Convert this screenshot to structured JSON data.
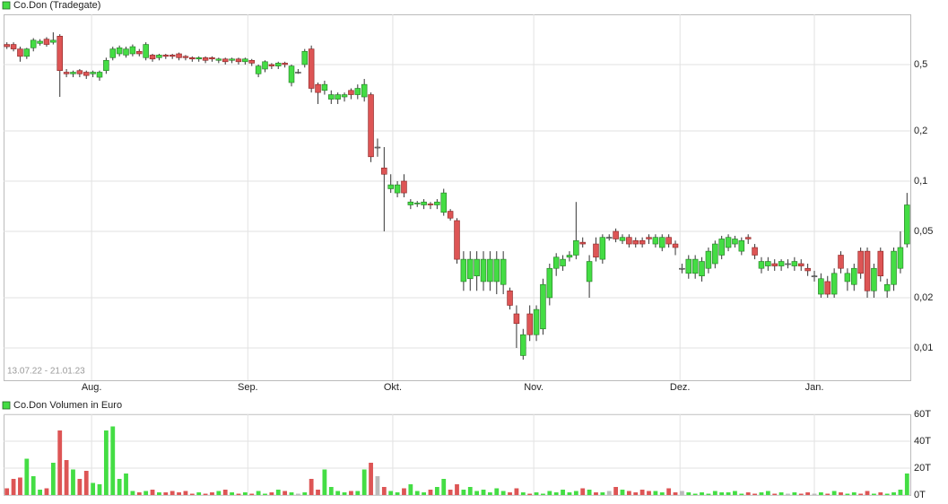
{
  "chart_data": [
    {
      "type": "candlestick",
      "title": "Co.Don (Tradegate)",
      "annotation": "13.07.22 - 21.01.23",
      "log": true,
      "grid": true,
      "up_color": "#44dd44",
      "down_color": "#dd5555",
      "flat_color": "#bbbbbb",
      "ylim": [
        0.0064,
        1.0
      ],
      "yticks": [
        {
          "value": 0.01,
          "label": "0,01"
        },
        {
          "value": 0.02,
          "label": "0,02"
        },
        {
          "value": 0.05,
          "label": "0,05"
        },
        {
          "value": 0.1,
          "label": "0,1"
        },
        {
          "value": 0.2,
          "label": "0,2"
        },
        {
          "value": 0.5,
          "label": "0,5"
        }
      ],
      "xlim": [
        -0.5,
        136.5
      ],
      "xticks": [
        {
          "value": 12.8,
          "label": "Aug."
        },
        {
          "value": 36.4,
          "label": "Sep."
        },
        {
          "value": 58.3,
          "label": "Okt."
        },
        {
          "value": 79.6,
          "label": "Nov."
        },
        {
          "value": 101.7,
          "label": "Dez."
        },
        {
          "value": 122.0,
          "label": "Jan."
        }
      ],
      "open": [
        0.66,
        0.66,
        0.62,
        0.56,
        0.63,
        0.67,
        0.71,
        0.68,
        0.74,
        0.45,
        0.44,
        0.46,
        0.45,
        0.44,
        0.42,
        0.46,
        0.55,
        0.58,
        0.57,
        0.58,
        0.6,
        0.55,
        0.57,
        0.55,
        0.57,
        0.57,
        0.58,
        0.56,
        0.55,
        0.54,
        0.55,
        0.55,
        0.53,
        0.54,
        0.53,
        0.54,
        0.52,
        0.53,
        0.44,
        0.47,
        0.5,
        0.49,
        0.51,
        0.39,
        0.45,
        0.5,
        0.62,
        0.38,
        0.35,
        0.31,
        0.31,
        0.32,
        0.35,
        0.33,
        0.32,
        0.33,
        0.16,
        0.12,
        0.09,
        0.085,
        0.1,
        0.072,
        0.073,
        0.072,
        0.073,
        0.072,
        0.065,
        0.066,
        0.058,
        0.025,
        0.026,
        0.027,
        0.025,
        0.025,
        0.025,
        0.024,
        0.022,
        0.016,
        0.009,
        0.016,
        0.012,
        0.013,
        0.02,
        0.03,
        0.031,
        0.035,
        0.036,
        0.043,
        0.025,
        0.042,
        0.034,
        0.046,
        0.05,
        0.044,
        0.046,
        0.044,
        0.044,
        0.046,
        0.042,
        0.04,
        0.046,
        0.042,
        0.03,
        0.028,
        0.028,
        0.027,
        0.03,
        0.032,
        0.036,
        0.04,
        0.042,
        0.038,
        0.046,
        0.04,
        0.03,
        0.031,
        0.032,
        0.031,
        0.032,
        0.031,
        0.032,
        0.03,
        0.027,
        0.021,
        0.025,
        0.021,
        0.036,
        0.025,
        0.024,
        0.038,
        0.038,
        0.022,
        0.038,
        0.022,
        0.024,
        0.03,
        0.042
      ],
      "high": [
        0.68,
        0.68,
        0.64,
        0.63,
        0.72,
        0.71,
        0.73,
        0.78,
        0.76,
        0.47,
        0.46,
        0.47,
        0.46,
        0.46,
        0.46,
        0.55,
        0.64,
        0.65,
        0.64,
        0.66,
        0.62,
        0.68,
        0.58,
        0.58,
        0.58,
        0.58,
        0.59,
        0.57,
        0.56,
        0.56,
        0.56,
        0.56,
        0.55,
        0.55,
        0.55,
        0.55,
        0.55,
        0.54,
        0.5,
        0.53,
        0.51,
        0.52,
        0.52,
        0.5,
        0.47,
        0.62,
        0.65,
        0.39,
        0.4,
        0.35,
        0.34,
        0.34,
        0.36,
        0.38,
        0.41,
        0.34,
        0.18,
        0.16,
        0.11,
        0.1,
        0.11,
        0.078,
        0.076,
        0.078,
        0.075,
        0.078,
        0.09,
        0.068,
        0.06,
        0.038,
        0.038,
        0.038,
        0.038,
        0.038,
        0.038,
        0.038,
        0.023,
        0.018,
        0.013,
        0.018,
        0.018,
        0.026,
        0.032,
        0.037,
        0.036,
        0.038,
        0.075,
        0.046,
        0.036,
        0.046,
        0.048,
        0.048,
        0.052,
        0.048,
        0.048,
        0.046,
        0.046,
        0.048,
        0.048,
        0.048,
        0.048,
        0.044,
        0.032,
        0.036,
        0.036,
        0.035,
        0.04,
        0.044,
        0.047,
        0.048,
        0.047,
        0.046,
        0.048,
        0.042,
        0.035,
        0.035,
        0.034,
        0.034,
        0.034,
        0.035,
        0.034,
        0.032,
        0.029,
        0.028,
        0.027,
        0.03,
        0.038,
        0.03,
        0.032,
        0.04,
        0.04,
        0.032,
        0.04,
        0.026,
        0.04,
        0.05,
        0.085
      ],
      "low": [
        0.62,
        0.6,
        0.52,
        0.54,
        0.6,
        0.65,
        0.64,
        0.66,
        0.32,
        0.42,
        0.42,
        0.42,
        0.41,
        0.42,
        0.4,
        0.44,
        0.53,
        0.56,
        0.55,
        0.56,
        0.56,
        0.53,
        0.52,
        0.53,
        0.54,
        0.54,
        0.53,
        0.53,
        0.52,
        0.52,
        0.51,
        0.52,
        0.51,
        0.5,
        0.51,
        0.5,
        0.5,
        0.49,
        0.42,
        0.45,
        0.47,
        0.47,
        0.48,
        0.37,
        0.44,
        0.48,
        0.34,
        0.29,
        0.33,
        0.29,
        0.29,
        0.3,
        0.31,
        0.31,
        0.3,
        0.13,
        0.14,
        0.05,
        0.085,
        0.08,
        0.08,
        0.068,
        0.07,
        0.068,
        0.068,
        0.068,
        0.062,
        0.058,
        0.032,
        0.022,
        0.022,
        0.022,
        0.022,
        0.022,
        0.021,
        0.021,
        0.017,
        0.01,
        0.0085,
        0.011,
        0.011,
        0.012,
        0.018,
        0.027,
        0.029,
        0.033,
        0.034,
        0.04,
        0.02,
        0.033,
        0.032,
        0.044,
        0.043,
        0.042,
        0.04,
        0.04,
        0.04,
        0.042,
        0.04,
        0.038,
        0.04,
        0.036,
        0.028,
        0.026,
        0.026,
        0.025,
        0.028,
        0.03,
        0.034,
        0.038,
        0.04,
        0.036,
        0.042,
        0.034,
        0.028,
        0.029,
        0.029,
        0.029,
        0.03,
        0.029,
        0.029,
        0.027,
        0.025,
        0.02,
        0.02,
        0.02,
        0.028,
        0.022,
        0.022,
        0.026,
        0.02,
        0.02,
        0.025,
        0.02,
        0.022,
        0.028,
        0.04
      ],
      "close": [
        0.64,
        0.62,
        0.56,
        0.62,
        0.7,
        0.69,
        0.66,
        0.7,
        0.46,
        0.44,
        0.45,
        0.44,
        0.43,
        0.45,
        0.45,
        0.53,
        0.62,
        0.63,
        0.62,
        0.64,
        0.58,
        0.66,
        0.54,
        0.57,
        0.56,
        0.56,
        0.55,
        0.55,
        0.54,
        0.55,
        0.53,
        0.54,
        0.54,
        0.52,
        0.54,
        0.52,
        0.54,
        0.51,
        0.49,
        0.52,
        0.49,
        0.51,
        0.5,
        0.49,
        0.45,
        0.6,
        0.36,
        0.34,
        0.38,
        0.33,
        0.33,
        0.33,
        0.33,
        0.36,
        0.38,
        0.14,
        0.16,
        0.11,
        0.095,
        0.095,
        0.085,
        0.075,
        0.074,
        0.075,
        0.072,
        0.075,
        0.085,
        0.06,
        0.034,
        0.034,
        0.034,
        0.034,
        0.034,
        0.034,
        0.034,
        0.034,
        0.018,
        0.014,
        0.012,
        0.012,
        0.017,
        0.024,
        0.03,
        0.035,
        0.034,
        0.036,
        0.044,
        0.042,
        0.033,
        0.035,
        0.046,
        0.046,
        0.045,
        0.046,
        0.042,
        0.042,
        0.042,
        0.045,
        0.046,
        0.046,
        0.042,
        0.04,
        0.03,
        0.034,
        0.034,
        0.033,
        0.038,
        0.042,
        0.045,
        0.046,
        0.045,
        0.044,
        0.045,
        0.036,
        0.033,
        0.033,
        0.031,
        0.033,
        0.032,
        0.033,
        0.031,
        0.029,
        0.027,
        0.026,
        0.021,
        0.028,
        0.03,
        0.028,
        0.03,
        0.028,
        0.022,
        0.03,
        0.027,
        0.024,
        0.038,
        0.04,
        0.072
      ]
    },
    {
      "type": "bar",
      "title": "Co.Don Volumen in Euro",
      "grid": true,
      "ylim": [
        0,
        60
      ],
      "yticks": [
        {
          "value": 0,
          "label": "0T"
        },
        {
          "value": 20,
          "label": "20T"
        },
        {
          "value": 40,
          "label": "40T"
        },
        {
          "value": 60,
          "label": "60T"
        }
      ],
      "values": [
        5,
        12,
        13,
        27,
        14,
        4,
        5,
        24,
        48,
        26,
        19,
        12,
        18,
        9,
        8,
        48,
        51,
        12,
        16,
        3,
        2,
        3,
        4,
        2,
        2,
        3,
        2,
        3,
        1,
        2,
        1,
        2,
        3,
        4,
        2,
        1,
        2,
        1,
        3,
        1,
        2,
        4,
        3,
        2,
        1,
        2,
        12,
        4,
        19,
        6,
        3,
        2,
        3,
        3,
        19,
        24,
        14,
        6,
        3,
        2,
        5,
        8,
        3,
        2,
        4,
        6,
        12,
        4,
        8,
        4,
        6,
        3,
        4,
        2,
        5,
        3,
        2,
        5,
        2,
        1,
        2,
        1,
        3,
        2,
        4,
        2,
        3,
        5,
        4,
        2,
        2,
        3,
        6,
        4,
        3,
        2,
        4,
        3,
        3,
        2,
        5,
        2,
        3,
        2,
        1,
        2,
        1,
        3,
        2,
        2,
        3,
        1,
        2,
        1,
        2,
        3,
        1,
        2,
        1,
        2,
        1,
        2,
        1,
        2,
        1,
        3,
        2,
        1,
        2,
        1,
        3,
        1,
        2,
        1,
        2,
        4,
        16
      ]
    }
  ]
}
